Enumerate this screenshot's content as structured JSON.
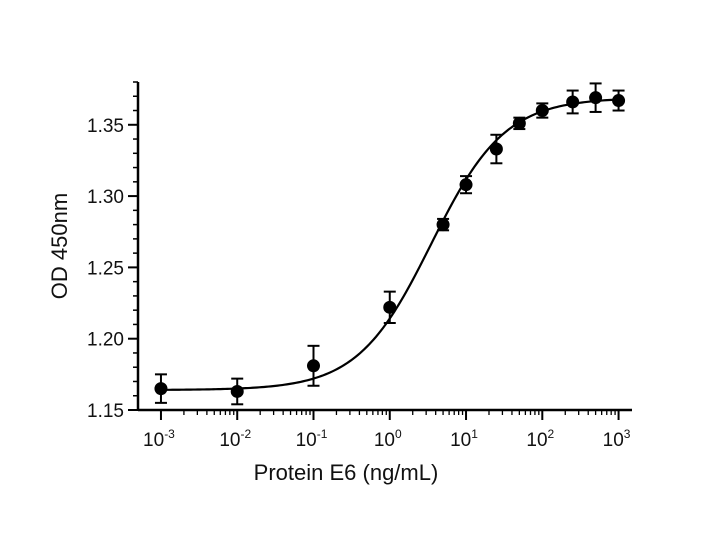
{
  "chart_data": {
    "type": "scatter",
    "title": "",
    "xlabel": "Protein E6 (ng/mL)",
    "ylabel": "OD 450nm",
    "x_scale": "log",
    "xlim": [
      0.0005,
      1500
    ],
    "ylim": [
      1.15,
      1.38
    ],
    "x_ticks": [
      {
        "base": "10",
        "exp": "-3",
        "value": 0.001
      },
      {
        "base": "10",
        "exp": "-2",
        "value": 0.01
      },
      {
        "base": "10",
        "exp": "-1",
        "value": 0.1
      },
      {
        "base": "10",
        "exp": "0",
        "value": 1
      },
      {
        "base": "10",
        "exp": "1",
        "value": 10
      },
      {
        "base": "10",
        "exp": "2",
        "value": 100
      },
      {
        "base": "10",
        "exp": "3",
        "value": 1000
      }
    ],
    "y_ticks": [
      {
        "label": "1.15",
        "value": 1.15
      },
      {
        "label": "1.20",
        "value": 1.2
      },
      {
        "label": "1.25",
        "value": 1.25
      },
      {
        "label": "1.30",
        "value": 1.3
      },
      {
        "label": "1.35",
        "value": 1.35
      }
    ],
    "grid": false,
    "legend": "none",
    "series": [
      {
        "points": [
          {
            "x": 0.001,
            "y": 1.165,
            "err": 0.01
          },
          {
            "x": 0.01,
            "y": 1.163,
            "err": 0.009
          },
          {
            "x": 0.1,
            "y": 1.181,
            "err": 0.014
          },
          {
            "x": 1,
            "y": 1.222,
            "err": 0.011
          },
          {
            "x": 5,
            "y": 1.28,
            "err": 0.004
          },
          {
            "x": 10,
            "y": 1.308,
            "err": 0.006
          },
          {
            "x": 25,
            "y": 1.333,
            "err": 0.01
          },
          {
            "x": 50,
            "y": 1.351,
            "err": 0.004
          },
          {
            "x": 100,
            "y": 1.36,
            "err": 0.005
          },
          {
            "x": 250,
            "y": 1.366,
            "err": 0.008
          },
          {
            "x": 500,
            "y": 1.369,
            "err": 0.01
          },
          {
            "x": 1000,
            "y": 1.367,
            "err": 0.007
          }
        ],
        "fit": {
          "model": "4PL",
          "bottom": 1.164,
          "top": 1.369,
          "ec50": 3.5,
          "hill": 0.9
        }
      }
    ],
    "colors": {
      "marker": "#000000",
      "line": "#000000",
      "axis": "#000000"
    }
  }
}
